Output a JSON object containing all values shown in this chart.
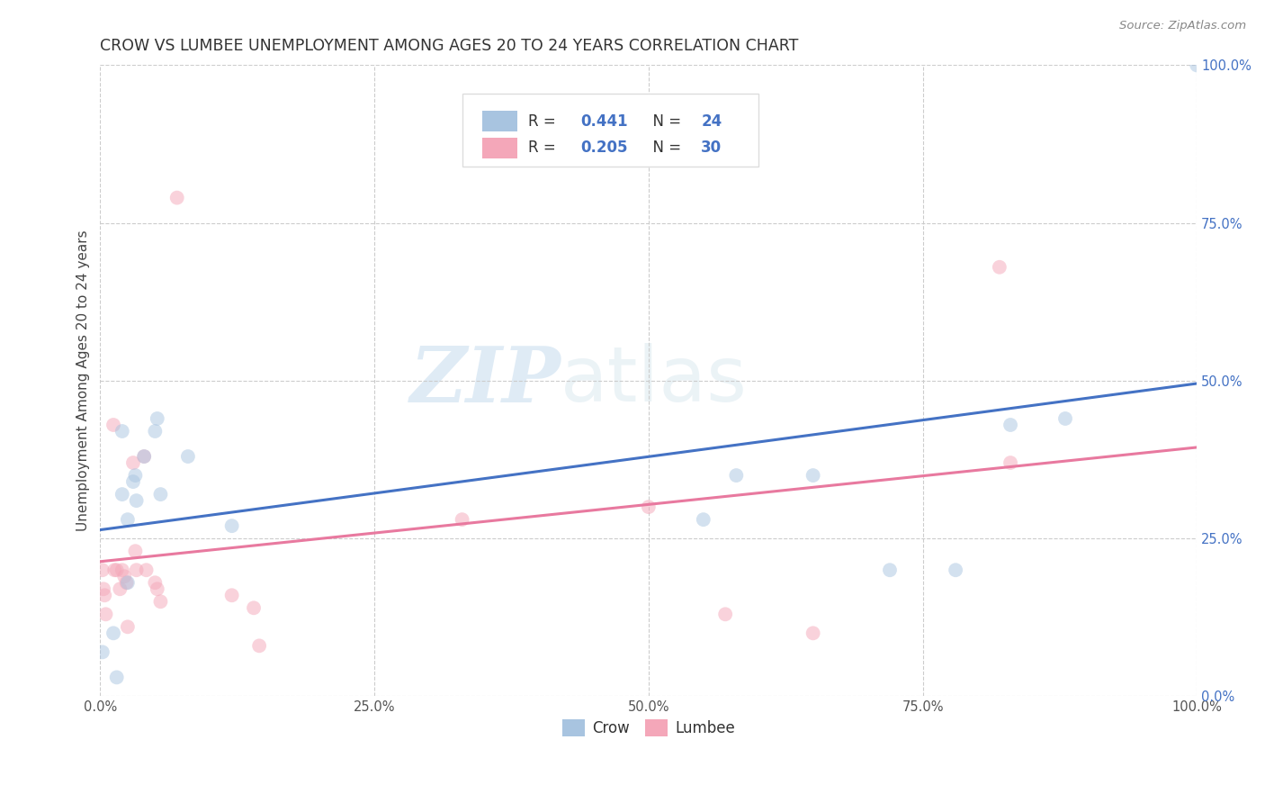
{
  "title": "CROW VS LUMBEE UNEMPLOYMENT AMONG AGES 20 TO 24 YEARS CORRELATION CHART",
  "source": "Source: ZipAtlas.com",
  "ylabel": "Unemployment Among Ages 20 to 24 years",
  "crow_R": 0.441,
  "crow_N": 24,
  "lumbee_R": 0.205,
  "lumbee_N": 30,
  "crow_color": "#a8c4e0",
  "lumbee_color": "#f4a7b9",
  "crow_line_color": "#4472c4",
  "lumbee_line_color": "#e8799f",
  "legend_text_color": "#4472c4",
  "crow_x": [
    0.002,
    0.012,
    0.015,
    0.02,
    0.02,
    0.025,
    0.025,
    0.03,
    0.032,
    0.033,
    0.04,
    0.05,
    0.052,
    0.055,
    0.08,
    0.12,
    0.55,
    0.58,
    0.65,
    0.72,
    0.78,
    0.83,
    0.88,
    1.0
  ],
  "crow_y": [
    0.07,
    0.1,
    0.03,
    0.32,
    0.42,
    0.28,
    0.18,
    0.34,
    0.35,
    0.31,
    0.38,
    0.42,
    0.44,
    0.32,
    0.38,
    0.27,
    0.28,
    0.35,
    0.35,
    0.2,
    0.2,
    0.43,
    0.44,
    1.0
  ],
  "lumbee_x": [
    0.002,
    0.003,
    0.004,
    0.005,
    0.012,
    0.013,
    0.015,
    0.018,
    0.02,
    0.022,
    0.024,
    0.025,
    0.03,
    0.032,
    0.033,
    0.04,
    0.042,
    0.05,
    0.052,
    0.055,
    0.07,
    0.12,
    0.14,
    0.145,
    0.33,
    0.5,
    0.57,
    0.65,
    0.82,
    0.83
  ],
  "lumbee_y": [
    0.2,
    0.17,
    0.16,
    0.13,
    0.43,
    0.2,
    0.2,
    0.17,
    0.2,
    0.19,
    0.18,
    0.11,
    0.37,
    0.23,
    0.2,
    0.38,
    0.2,
    0.18,
    0.17,
    0.15,
    0.79,
    0.16,
    0.14,
    0.08,
    0.28,
    0.3,
    0.13,
    0.1,
    0.68,
    0.37
  ],
  "background_color": "#ffffff",
  "watermark_zip": "ZIP",
  "watermark_atlas": "atlas",
  "xlim": [
    0.0,
    1.0
  ],
  "ylim": [
    0.0,
    1.0
  ],
  "xticks": [
    0.0,
    0.25,
    0.5,
    0.75,
    1.0
  ],
  "yticks": [
    0.0,
    0.25,
    0.5,
    0.75,
    1.0
  ],
  "xtick_labels": [
    "0.0%",
    "25.0%",
    "50.0%",
    "75.0%",
    "100.0%"
  ],
  "ytick_labels": [
    "0.0%",
    "25.0%",
    "50.0%",
    "75.0%",
    "100.0%"
  ],
  "marker_size": 130,
  "marker_alpha": 0.5,
  "title_fontsize": 12.5,
  "axis_label_fontsize": 11,
  "tick_fontsize": 10.5,
  "source_fontsize": 9.5
}
